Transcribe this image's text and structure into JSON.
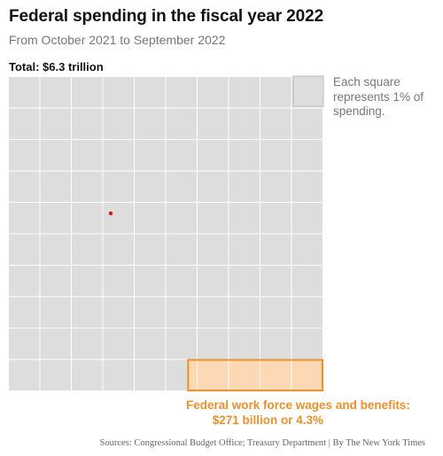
{
  "header": {
    "title": "Federal spending in the fiscal year 2022",
    "subtitle": "From October 2021 to September 2022"
  },
  "chart_data": {
    "type": "waffle",
    "total_label": "Total: $6.3 trillion",
    "grid": {
      "rows": 10,
      "cols": 10,
      "total_squares": 100
    },
    "legend": {
      "text": "Each square represents 1% of spending."
    },
    "highlight": {
      "label": "Federal work force wages and benefits:",
      "value_label": "$271 billion or 4.3%",
      "percent": 4.3,
      "amount_billion": 271
    },
    "colors": {
      "square": "#dddddd",
      "grid_line": "#ffffff",
      "highlight_fill": "#fcd9b4",
      "highlight_stroke": "#e8912d",
      "marker": "#e3120b",
      "legend_square": "#dddddd",
      "legend_stroke": "#bbbbbb"
    }
  },
  "footer": {
    "source": "Sources: Congressional Budget Office; Treasury Department | By The New York Times"
  }
}
